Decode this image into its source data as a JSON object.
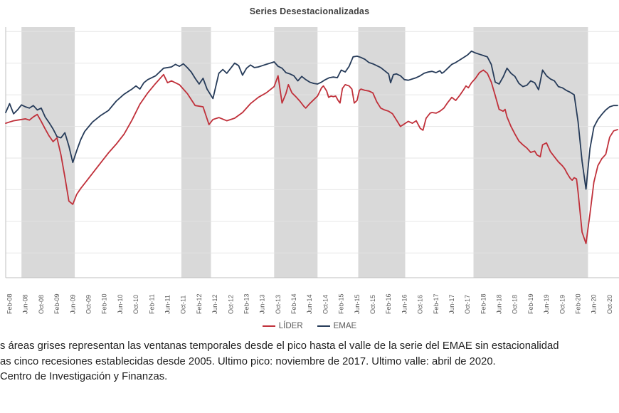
{
  "title": "Series Desestacionalizadas",
  "legend": {
    "items": [
      {
        "label": "LÍDER",
        "color": "#c0303a"
      },
      {
        "label": "EMAE",
        "color": "#263b59"
      }
    ]
  },
  "footnote": {
    "line1": "s áreas grises representan las ventanas temporales desde el pico hasta el valle de la serie del EMAE sin estacionalidad",
    "line2": "as cinco recesiones establecidas desde 2005. Ultimo pico: noviembre de 2017. Ultimo valle: abril de 2020.",
    "line3": "Centro de Investigación y Finanzas."
  },
  "chart_data": {
    "type": "line",
    "title": "Series Desestacionalizadas",
    "x_unit": "months since Jan-2008",
    "x_range": [
      0,
      155
    ],
    "y_range": [
      71.1,
      110.7
    ],
    "grid": true,
    "legend_position": "bottom",
    "gridline_values": [
      75,
      80,
      85,
      90,
      95,
      100,
      105,
      110
    ],
    "tick_labels": [
      "Feb-08",
      "Jun-08",
      "Oct-08",
      "Feb-09",
      "Jun-09",
      "Oct-09",
      "Feb-10",
      "Jun-10",
      "Oct-10",
      "Feb-11",
      "Jun-11",
      "Oct-11",
      "Feb-12",
      "Jun-12",
      "Oct-12",
      "Feb-13",
      "Jun-13",
      "Oct-13",
      "Feb-14",
      "Jun-14",
      "Oct-14",
      "Feb-15",
      "Jun-15",
      "Oct-15",
      "Feb-16",
      "Jun-16",
      "Oct-16",
      "Feb-17",
      "Jun-17",
      "Oct-17",
      "Feb-18",
      "Jun-18",
      "Oct-18",
      "Feb-19",
      "Jun-19",
      "Oct-19",
      "Feb-20",
      "Jun-20",
      "Oct-20"
    ],
    "tick_start_month": 1,
    "tick_step": 4,
    "recession_bands_months": [
      [
        4,
        17.5
      ],
      [
        44.5,
        52
      ],
      [
        68,
        79
      ],
      [
        89.3,
        101.2
      ],
      [
        118.5,
        147.5
      ]
    ],
    "band_color": "#d9d9d9",
    "grid_color": "#e4e4e4",
    "axis_color": "#bfbfbf",
    "series": [
      {
        "name": "LÍDER",
        "color": "#c0303a",
        "points": [
          [
            0,
            95.5
          ],
          [
            1,
            95.7
          ],
          [
            2,
            95.9
          ],
          [
            3,
            96.0
          ],
          [
            4,
            96.1
          ],
          [
            5,
            96.2
          ],
          [
            6,
            96.0
          ],
          [
            7,
            96.5
          ],
          [
            8,
            96.9
          ],
          [
            9,
            95.8
          ],
          [
            10,
            94.6
          ],
          [
            11,
            93.5
          ],
          [
            12,
            92.6
          ],
          [
            13,
            93.2
          ],
          [
            14,
            90.5
          ],
          [
            15,
            87.0
          ],
          [
            16,
            83.2
          ],
          [
            17,
            82.7
          ],
          [
            18,
            84.3
          ],
          [
            19,
            85.2
          ],
          [
            20,
            86.0
          ],
          [
            22,
            87.6
          ],
          [
            24,
            89.2
          ],
          [
            26,
            90.8
          ],
          [
            28,
            92.2
          ],
          [
            30,
            93.8
          ],
          [
            32,
            96.0
          ],
          [
            34,
            98.5
          ],
          [
            36,
            100.3
          ],
          [
            38,
            101.8
          ],
          [
            40,
            103.2
          ],
          [
            41,
            101.9
          ],
          [
            42,
            102.2
          ],
          [
            44,
            101.6
          ],
          [
            46,
            100.2
          ],
          [
            48,
            98.3
          ],
          [
            50,
            98.1
          ],
          [
            51.5,
            95.3
          ],
          [
            52.5,
            96.1
          ],
          [
            54,
            96.4
          ],
          [
            56,
            95.9
          ],
          [
            58,
            96.3
          ],
          [
            60,
            97.2
          ],
          [
            62,
            98.6
          ],
          [
            64,
            99.6
          ],
          [
            66,
            100.3
          ],
          [
            68,
            101.3
          ],
          [
            69,
            103.0
          ],
          [
            70,
            98.7
          ],
          [
            71,
            100.2
          ],
          [
            71.6,
            101.6
          ],
          [
            72.5,
            100.3
          ],
          [
            73.5,
            99.7
          ],
          [
            74.5,
            99.0
          ],
          [
            75.5,
            98.2
          ],
          [
            76,
            97.9
          ],
          [
            77,
            98.6
          ],
          [
            78,
            99.2
          ],
          [
            79,
            99.8
          ],
          [
            80,
            101.1
          ],
          [
            80.5,
            101.4
          ],
          [
            81.3,
            100.6
          ],
          [
            81.8,
            99.6
          ],
          [
            82.4,
            99.8
          ],
          [
            83,
            99.7
          ],
          [
            83.6,
            99.8
          ],
          [
            84.2,
            99.1
          ],
          [
            84.7,
            98.7
          ],
          [
            85.3,
            101.0
          ],
          [
            86,
            101.6
          ],
          [
            87,
            101.4
          ],
          [
            87.7,
            100.9
          ],
          [
            88.3,
            98.7
          ],
          [
            89,
            99.1
          ],
          [
            89.6,
            100.7
          ],
          [
            90,
            100.9
          ],
          [
            91,
            100.7
          ],
          [
            92,
            100.6
          ],
          [
            93,
            100.3
          ],
          [
            94,
            98.9
          ],
          [
            95,
            97.9
          ],
          [
            96,
            97.6
          ],
          [
            97,
            97.4
          ],
          [
            98,
            97.0
          ],
          [
            99,
            96.0
          ],
          [
            100,
            95.0
          ],
          [
            101,
            95.4
          ],
          [
            102,
            95.8
          ],
          [
            103,
            95.5
          ],
          [
            104,
            95.9
          ],
          [
            105,
            94.7
          ],
          [
            105.7,
            94.4
          ],
          [
            106.5,
            96.3
          ],
          [
            107.5,
            97.1
          ],
          [
            108,
            97.2
          ],
          [
            109,
            97.1
          ],
          [
            110,
            97.4
          ],
          [
            111,
            97.9
          ],
          [
            112,
            98.8
          ],
          [
            113,
            99.6
          ],
          [
            114,
            99.1
          ],
          [
            115,
            99.9
          ],
          [
            116,
            100.8
          ],
          [
            116.6,
            101.4
          ],
          [
            117.2,
            101.1
          ],
          [
            118,
            101.9
          ],
          [
            119,
            102.6
          ],
          [
            120,
            103.5
          ],
          [
            121,
            103.9
          ],
          [
            122,
            103.4
          ],
          [
            123,
            102.0
          ],
          [
            124,
            99.9
          ],
          [
            125,
            97.7
          ],
          [
            126,
            97.4
          ],
          [
            126.5,
            97.7
          ],
          [
            127,
            96.5
          ],
          [
            128,
            95.0
          ],
          [
            129,
            93.8
          ],
          [
            130,
            92.7
          ],
          [
            131,
            92.1
          ],
          [
            132,
            91.6
          ],
          [
            133,
            90.9
          ],
          [
            134,
            91.1
          ],
          [
            134.6,
            90.5
          ],
          [
            135.4,
            90.2
          ],
          [
            136,
            92.1
          ],
          [
            137,
            92.4
          ],
          [
            138,
            91.0
          ],
          [
            139,
            90.2
          ],
          [
            140,
            89.4
          ],
          [
            141,
            88.8
          ],
          [
            141.6,
            88.3
          ],
          [
            142.3,
            87.5
          ],
          [
            143,
            86.8
          ],
          [
            143.5,
            86.5
          ],
          [
            144,
            86.9
          ],
          [
            144.6,
            86.7
          ],
          [
            145,
            84.6
          ],
          [
            146,
            78.3
          ],
          [
            147,
            76.5
          ],
          [
            148,
            81.2
          ],
          [
            149,
            86.2
          ],
          [
            150,
            88.8
          ],
          [
            151,
            89.9
          ],
          [
            152,
            90.6
          ],
          [
            153,
            93.3
          ],
          [
            154,
            94.3
          ],
          [
            155,
            94.5
          ]
        ]
      },
      {
        "name": "EMAE",
        "color": "#263b59",
        "points": [
          [
            0,
            97.2
          ],
          [
            1,
            98.6
          ],
          [
            2,
            97.0
          ],
          [
            3,
            97.6
          ],
          [
            4,
            98.4
          ],
          [
            5,
            98.1
          ],
          [
            6,
            97.9
          ],
          [
            7,
            98.3
          ],
          [
            8,
            97.6
          ],
          [
            9,
            97.9
          ],
          [
            10,
            96.5
          ],
          [
            11,
            95.6
          ],
          [
            12,
            94.6
          ],
          [
            13,
            93.4
          ],
          [
            14,
            93.2
          ],
          [
            15,
            94.0
          ],
          [
            16,
            91.9
          ],
          [
            17,
            89.3
          ],
          [
            18,
            91.2
          ],
          [
            19,
            92.9
          ],
          [
            20,
            94.2
          ],
          [
            22,
            95.7
          ],
          [
            24,
            96.7
          ],
          [
            26,
            97.5
          ],
          [
            28,
            99.0
          ],
          [
            30,
            100.1
          ],
          [
            32,
            100.9
          ],
          [
            33,
            101.4
          ],
          [
            34,
            100.9
          ],
          [
            35,
            101.9
          ],
          [
            36,
            102.4
          ],
          [
            38,
            103.0
          ],
          [
            40,
            104.2
          ],
          [
            42,
            104.4
          ],
          [
            43,
            104.8
          ],
          [
            44,
            104.5
          ],
          [
            45,
            104.9
          ],
          [
            46,
            104.3
          ],
          [
            47,
            103.6
          ],
          [
            48,
            102.6
          ],
          [
            49,
            101.7
          ],
          [
            50,
            102.6
          ],
          [
            51,
            100.9
          ],
          [
            52.5,
            99.4
          ],
          [
            54,
            103.4
          ],
          [
            55,
            104.0
          ],
          [
            56,
            103.4
          ],
          [
            57,
            104.2
          ],
          [
            58,
            105.0
          ],
          [
            59,
            104.6
          ],
          [
            60,
            103.1
          ],
          [
            61,
            104.2
          ],
          [
            62,
            104.7
          ],
          [
            63,
            104.3
          ],
          [
            64,
            104.4
          ],
          [
            65,
            104.6
          ],
          [
            66,
            104.8
          ],
          [
            67,
            105.0
          ],
          [
            68,
            105.2
          ],
          [
            69,
            104.5
          ],
          [
            70,
            104.2
          ],
          [
            71,
            103.5
          ],
          [
            72,
            103.3
          ],
          [
            73,
            103.0
          ],
          [
            74,
            102.2
          ],
          [
            75,
            102.9
          ],
          [
            76,
            102.4
          ],
          [
            77,
            102.0
          ],
          [
            78,
            101.8
          ],
          [
            79,
            101.7
          ],
          [
            80,
            102.0
          ],
          [
            81,
            102.4
          ],
          [
            82,
            102.7
          ],
          [
            83,
            102.8
          ],
          [
            84,
            102.7
          ],
          [
            85,
            103.9
          ],
          [
            86,
            103.6
          ],
          [
            87,
            104.5
          ],
          [
            88,
            106.0
          ],
          [
            89,
            106.1
          ],
          [
            90,
            105.9
          ],
          [
            91,
            105.6
          ],
          [
            92,
            105.1
          ],
          [
            93,
            104.9
          ],
          [
            94,
            104.6
          ],
          [
            95,
            104.3
          ],
          [
            96,
            103.8
          ],
          [
            97,
            103.3
          ],
          [
            97.5,
            101.9
          ],
          [
            98.2,
            103.2
          ],
          [
            99,
            103.3
          ],
          [
            100,
            103.0
          ],
          [
            101,
            102.4
          ],
          [
            102,
            102.3
          ],
          [
            103,
            102.5
          ],
          [
            104,
            102.7
          ],
          [
            105,
            103.0
          ],
          [
            106,
            103.4
          ],
          [
            107,
            103.6
          ],
          [
            108,
            103.7
          ],
          [
            109,
            103.5
          ],
          [
            110,
            103.8
          ],
          [
            110.5,
            103.4
          ],
          [
            111,
            103.6
          ],
          [
            112,
            104.2
          ],
          [
            113,
            104.8
          ],
          [
            114,
            105.1
          ],
          [
            115,
            105.5
          ],
          [
            116,
            105.9
          ],
          [
            117,
            106.3
          ],
          [
            118,
            106.9
          ],
          [
            119,
            106.6
          ],
          [
            120,
            106.4
          ],
          [
            121,
            106.2
          ],
          [
            122,
            106.0
          ],
          [
            123,
            104.8
          ],
          [
            124,
            102.0
          ],
          [
            125,
            101.7
          ],
          [
            126,
            102.8
          ],
          [
            127,
            104.2
          ],
          [
            128,
            103.4
          ],
          [
            129,
            102.9
          ],
          [
            130,
            101.8
          ],
          [
            131,
            101.3
          ],
          [
            132,
            101.5
          ],
          [
            133,
            102.2
          ],
          [
            134,
            101.9
          ],
          [
            135,
            100.8
          ],
          [
            136,
            103.9
          ],
          [
            137,
            103.0
          ],
          [
            138,
            102.5
          ],
          [
            139,
            102.2
          ],
          [
            140,
            101.3
          ],
          [
            141,
            101.1
          ],
          [
            142,
            100.7
          ],
          [
            143,
            100.4
          ],
          [
            144,
            100.0
          ],
          [
            145,
            95.7
          ],
          [
            146,
            89.5
          ],
          [
            147,
            85.1
          ],
          [
            148,
            91.5
          ],
          [
            149,
            94.9
          ],
          [
            150,
            96.1
          ],
          [
            151,
            96.9
          ],
          [
            152,
            97.6
          ],
          [
            153,
            98.1
          ],
          [
            154,
            98.3
          ],
          [
            155,
            98.3
          ]
        ]
      }
    ]
  }
}
